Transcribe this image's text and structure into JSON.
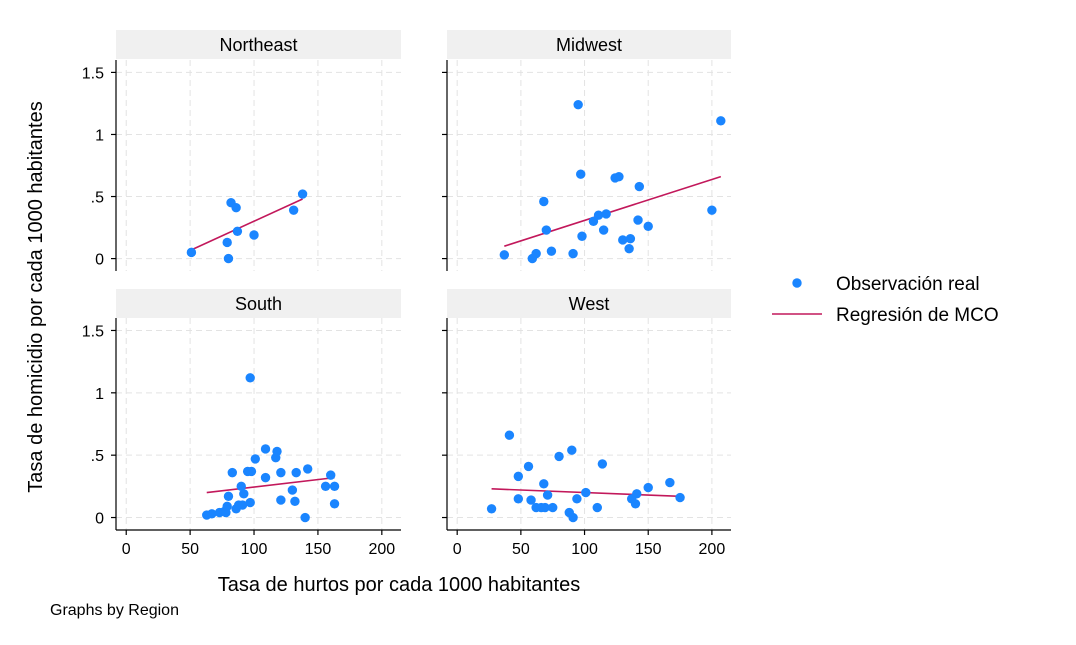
{
  "chart_data": {
    "type": "scatter",
    "xlabel": "Tasa de hurtos por cada 1000 habitantes",
    "ylabel": "Tasa de homicidio por cada 1000 habitantes",
    "note": "Graphs by Region",
    "xlim": [
      -8,
      215
    ],
    "ylim": [
      -0.1,
      1.6
    ],
    "xticks": [
      0,
      50,
      100,
      150,
      200
    ],
    "yticks": [
      0,
      0.5,
      1,
      1.5
    ],
    "ytick_labels": [
      "0",
      ".5",
      "1",
      "1.5"
    ],
    "grid": true,
    "legend": {
      "position": "right",
      "items": [
        {
          "label": "Observación real",
          "kind": "point",
          "color": "#1a85ff"
        },
        {
          "label": "Regresión de MCO",
          "kind": "line",
          "color": "#c2185b"
        }
      ]
    },
    "panels": [
      {
        "title": "Northeast",
        "points": [
          [
            51,
            0.05
          ],
          [
            79,
            0.13
          ],
          [
            80,
            0.0
          ],
          [
            82,
            0.45
          ],
          [
            86,
            0.41
          ],
          [
            87,
            0.22
          ],
          [
            100,
            0.19
          ],
          [
            131,
            0.39
          ],
          [
            138,
            0.52
          ]
        ],
        "fit": [
          [
            51,
            0.07
          ],
          [
            138,
            0.48
          ]
        ]
      },
      {
        "title": "Midwest",
        "points": [
          [
            37,
            0.03
          ],
          [
            59,
            0.0
          ],
          [
            62,
            0.04
          ],
          [
            68,
            0.46
          ],
          [
            70,
            0.23
          ],
          [
            74,
            0.06
          ],
          [
            91,
            0.04
          ],
          [
            95,
            1.24
          ],
          [
            97,
            0.68
          ],
          [
            98,
            0.18
          ],
          [
            107,
            0.3
          ],
          [
            111,
            0.35
          ],
          [
            115,
            0.23
          ],
          [
            117,
            0.36
          ],
          [
            124,
            0.65
          ],
          [
            127,
            0.66
          ],
          [
            130,
            0.15
          ],
          [
            135,
            0.08
          ],
          [
            136,
            0.16
          ],
          [
            142,
            0.31
          ],
          [
            143,
            0.58
          ],
          [
            150,
            0.26
          ],
          [
            200,
            0.39
          ],
          [
            207,
            1.11
          ]
        ],
        "fit": [
          [
            37,
            0.1
          ],
          [
            207,
            0.66
          ]
        ]
      },
      {
        "title": "South",
        "points": [
          [
            63,
            0.02
          ],
          [
            67,
            0.03
          ],
          [
            73,
            0.04
          ],
          [
            77,
            0.05
          ],
          [
            78,
            0.04
          ],
          [
            79,
            0.09
          ],
          [
            80,
            0.17
          ],
          [
            83,
            0.36
          ],
          [
            86,
            0.07
          ],
          [
            88,
            0.1
          ],
          [
            90,
            0.25
          ],
          [
            91,
            0.1
          ],
          [
            92,
            0.19
          ],
          [
            95,
            0.37
          ],
          [
            97,
            0.12
          ],
          [
            97,
            1.12
          ],
          [
            98,
            0.37
          ],
          [
            101,
            0.47
          ],
          [
            109,
            0.32
          ],
          [
            109,
            0.55
          ],
          [
            117,
            0.48
          ],
          [
            118,
            0.53
          ],
          [
            121,
            0.14
          ],
          [
            121,
            0.36
          ],
          [
            130,
            0.22
          ],
          [
            132,
            0.13
          ],
          [
            133,
            0.36
          ],
          [
            140,
            0.0
          ],
          [
            142,
            0.39
          ],
          [
            156,
            0.25
          ],
          [
            160,
            0.34
          ],
          [
            163,
            0.25
          ],
          [
            163,
            0.11
          ]
        ],
        "fit": [
          [
            63,
            0.2
          ],
          [
            163,
            0.32
          ]
        ]
      },
      {
        "title": "West",
        "points": [
          [
            27,
            0.07
          ],
          [
            41,
            0.66
          ],
          [
            48,
            0.15
          ],
          [
            48,
            0.33
          ],
          [
            56,
            0.41
          ],
          [
            58,
            0.14
          ],
          [
            62,
            0.08
          ],
          [
            66,
            0.08
          ],
          [
            68,
            0.27
          ],
          [
            69,
            0.08
          ],
          [
            71,
            0.18
          ],
          [
            75,
            0.08
          ],
          [
            80,
            0.49
          ],
          [
            88,
            0.04
          ],
          [
            90,
            0.54
          ],
          [
            91,
            0.0
          ],
          [
            94,
            0.15
          ],
          [
            101,
            0.2
          ],
          [
            110,
            0.08
          ],
          [
            114,
            0.43
          ],
          [
            137,
            0.15
          ],
          [
            140,
            0.11
          ],
          [
            141,
            0.19
          ],
          [
            150,
            0.24
          ],
          [
            167,
            0.28
          ],
          [
            175,
            0.16
          ]
        ],
        "fit": [
          [
            27,
            0.23
          ],
          [
            175,
            0.17
          ]
        ]
      }
    ]
  }
}
